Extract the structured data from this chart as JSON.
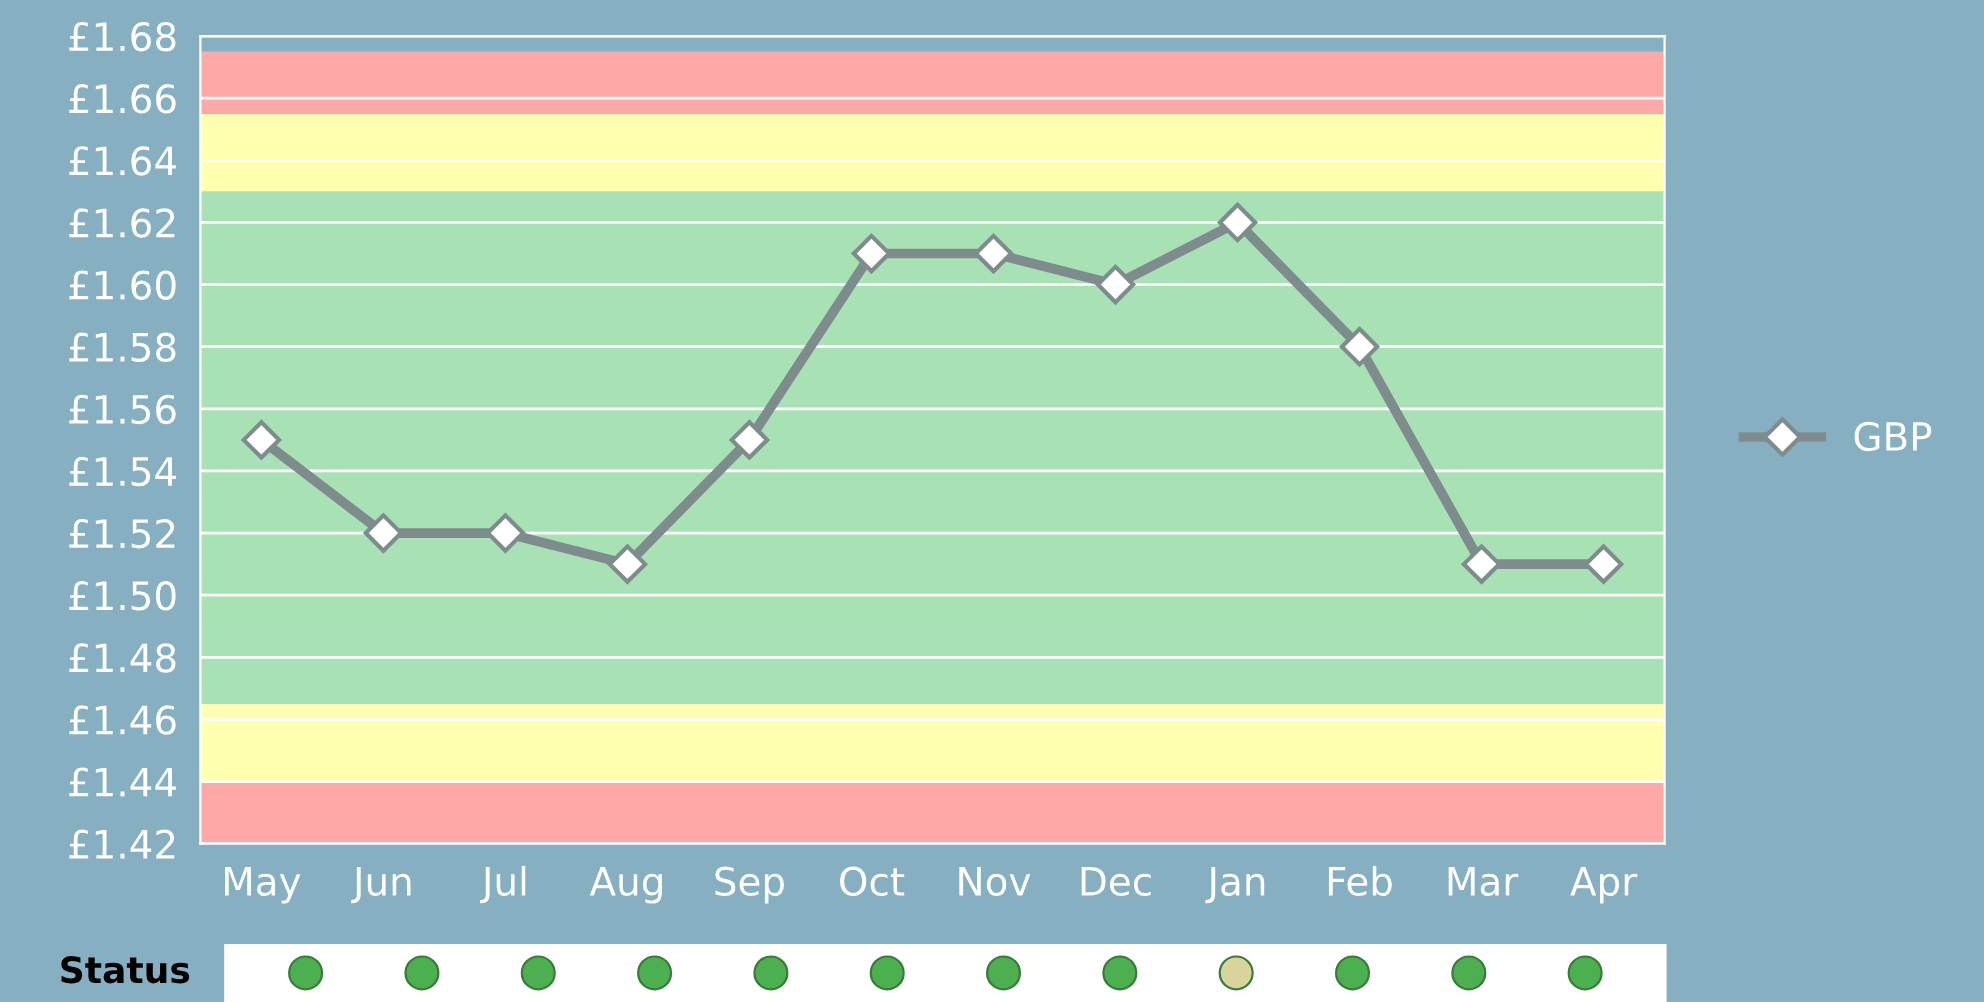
{
  "chart_data": [
    {
      "type": "line",
      "categories": [
        "May",
        "Jun",
        "Jul",
        "Aug",
        "Sep",
        "Oct",
        "Nov",
        "Dec",
        "Jan",
        "Feb",
        "Mar",
        "Apr"
      ],
      "series": [
        {
          "name": "GBP",
          "color": "#7f8c8d",
          "values": [
            1.55,
            1.52,
            1.52,
            1.51,
            1.55,
            1.61,
            1.61,
            1.6,
            1.62,
            1.58,
            1.51,
            1.51
          ]
        }
      ],
      "ylim": [
        1.42,
        1.68
      ],
      "yticks": [
        {
          "value": 1.42,
          "label": "£1.42"
        },
        {
          "value": 1.44,
          "label": "£1.44"
        },
        {
          "value": 1.46,
          "label": "£1.46"
        },
        {
          "value": 1.48,
          "label": "£1.48"
        },
        {
          "value": 1.5,
          "label": "£1.50"
        },
        {
          "value": 1.52,
          "label": "£1.52"
        },
        {
          "value": 1.54,
          "label": "£1.54"
        },
        {
          "value": 1.56,
          "label": "£1.56"
        },
        {
          "value": 1.58,
          "label": "£1.58"
        },
        {
          "value": 1.6,
          "label": "£1.60"
        },
        {
          "value": 1.62,
          "label": "£1.62"
        },
        {
          "value": 1.64,
          "label": "£1.64"
        },
        {
          "value": 1.66,
          "label": "£1.66"
        },
        {
          "value": 1.68,
          "label": "£1.68"
        }
      ],
      "bands": [
        {
          "axis": "y",
          "from": 1.42,
          "to": 1.44,
          "color": "#ffa8a8"
        },
        {
          "axis": "y",
          "from": 1.44,
          "to": 1.465,
          "color": "#ffffb0"
        },
        {
          "axis": "y",
          "from": 1.465,
          "to": 1.63,
          "color": "#a8e2b4"
        },
        {
          "axis": "y",
          "from": 1.63,
          "to": 1.655,
          "color": "#ffffb0"
        },
        {
          "axis": "y",
          "from": 1.655,
          "to": 1.675,
          "color": "#ffa8a8"
        }
      ],
      "grid": "y",
      "legend": "right",
      "marker": "diamond",
      "line_style": "solid"
    },
    {
      "type": "other",
      "ylabel": "Status",
      "categories": [
        null,
        null,
        null,
        null,
        null,
        null,
        null,
        null,
        null,
        null,
        null,
        null
      ],
      "colors": [
        "#4caf50",
        "#4caf50",
        "#4caf50",
        "#4caf50",
        "#4caf50",
        "#4caf50",
        "#4caf50",
        "#4caf50",
        "#d8d49c",
        "#4caf50",
        "#4caf50",
        "#4caf50"
      ]
    }
  ]
}
